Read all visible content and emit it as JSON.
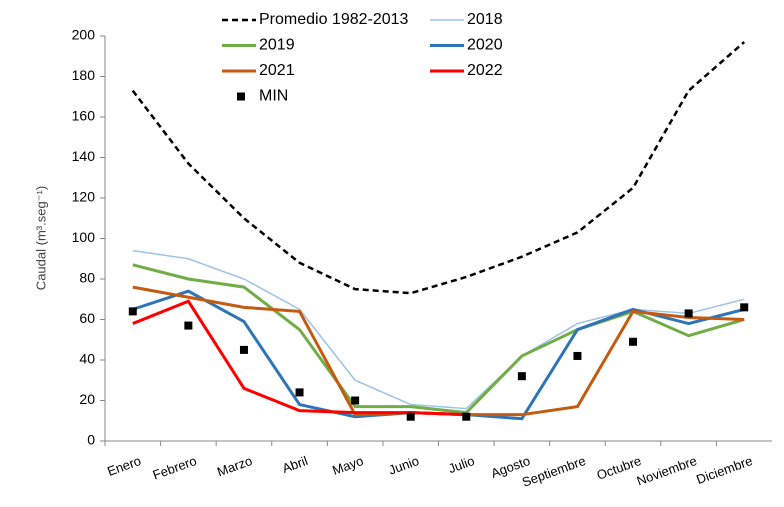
{
  "chart_data": {
    "type": "line",
    "y_label": "Caudal  (m³.seg⁻¹)",
    "categories": [
      "Enero",
      "Febrero",
      "Marzo",
      "Abril",
      "Mayo",
      "Junio",
      "Julio",
      "Agosto",
      "Septiembre",
      "Octubre",
      "Noviembre",
      "Diciembre"
    ],
    "ylim": [
      0,
      200
    ],
    "yticks": [
      0,
      20,
      40,
      60,
      80,
      100,
      120,
      140,
      160,
      180,
      200
    ],
    "series": [
      {
        "name": "Promedio 1982-2013",
        "color": "#000000",
        "dash": true,
        "values": [
          173,
          137,
          110,
          88,
          75,
          73,
          81,
          91,
          103,
          125,
          173,
          197
        ]
      },
      {
        "name": "2018",
        "color": "#9dc3e6",
        "values": [
          94,
          90,
          80,
          65,
          30,
          18,
          16,
          42,
          58,
          65,
          63,
          70
        ]
      },
      {
        "name": "2019",
        "color": "#70ad47",
        "values": [
          87,
          80,
          76,
          55,
          17,
          17,
          14,
          42,
          55,
          64,
          52,
          60
        ]
      },
      {
        "name": "2020",
        "color": "#2e75b6",
        "values": [
          65,
          74,
          59,
          18,
          12,
          14,
          13,
          11,
          55,
          65,
          58,
          65
        ]
      },
      {
        "name": "2021",
        "color": "#c55a11",
        "values": [
          76,
          71,
          66,
          64,
          13,
          14,
          13,
          13,
          17,
          64,
          61,
          60
        ]
      },
      {
        "name": "2022",
        "color": "#ff0000",
        "values": [
          58,
          69,
          26,
          15,
          14,
          14,
          13,
          null,
          null,
          null,
          null,
          null
        ]
      },
      {
        "name": "MIN",
        "color": "#000000",
        "marker": "square",
        "values": [
          64,
          57,
          45,
          24,
          20,
          12,
          12,
          32,
          42,
          49,
          63,
          66
        ]
      }
    ]
  }
}
